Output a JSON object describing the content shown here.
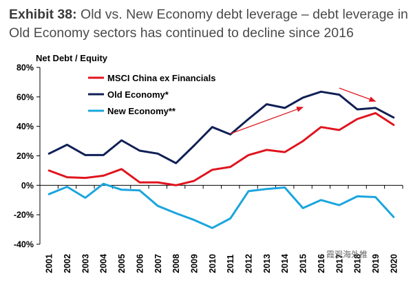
{
  "exhibit": {
    "label": "Exhibit 38:",
    "title": "Old vs. New Economy debt leverage – debt leverage in Old Economy sectors has continued to decline since 2016"
  },
  "chart_data": {
    "type": "line",
    "ylabel": "Net Debt / Equity",
    "xlabel": "",
    "categories": [
      "2001",
      "2002",
      "2003",
      "2004",
      "2005",
      "2006",
      "2007",
      "2008",
      "2009",
      "2010",
      "2011",
      "2012",
      "2013",
      "2014",
      "2015",
      "2016",
      "2017",
      "2018",
      "2019",
      "2020"
    ],
    "ylim": [
      -40,
      80
    ],
    "yticks": [
      -40,
      -20,
      0,
      20,
      40,
      60,
      80
    ],
    "ytick_labels": [
      "-40%",
      "-20%",
      "0%",
      "20%",
      "40%",
      "60%",
      "80%"
    ],
    "grid": false,
    "legend_position": "top-left",
    "series": [
      {
        "name": "MSCI China ex Financials",
        "color": "#e0141e",
        "values": [
          10,
          5.5,
          5,
          6.5,
          11,
          2,
          2,
          0,
          3,
          10.5,
          12.5,
          20.5,
          24,
          22.5,
          30,
          39.5,
          37.5,
          45,
          49,
          41
        ]
      },
      {
        "name": "Old Economy*",
        "color": "#0f1f55",
        "values": [
          21.5,
          27.5,
          20.5,
          20.5,
          30.5,
          23.5,
          21.5,
          15,
          27,
          39.5,
          34.5,
          45,
          55,
          52.5,
          59.5,
          63.5,
          61.5,
          51.5,
          52.5,
          46
        ]
      },
      {
        "name": "New Economy**",
        "color": "#1aa5de",
        "values": [
          -6,
          -1,
          -8.5,
          1,
          -3,
          -3.5,
          -14,
          -19,
          -23.5,
          -29,
          -22.5,
          -4,
          -2.5,
          -1.5,
          -15.5,
          -10,
          -13.5,
          -7.5,
          -8,
          -21.5
        ]
      }
    ],
    "annotations": [
      {
        "type": "arrow",
        "color": "#e0141e",
        "from": {
          "x": "2011",
          "y": 35
        },
        "to": {
          "x": "2015",
          "y": 53
        }
      },
      {
        "type": "arrow",
        "color": "#e0141e",
        "from": {
          "x": "2017",
          "y": 66
        },
        "to": {
          "x": "2019",
          "y": 57
        }
      }
    ]
  },
  "watermark": "霞观海外推"
}
